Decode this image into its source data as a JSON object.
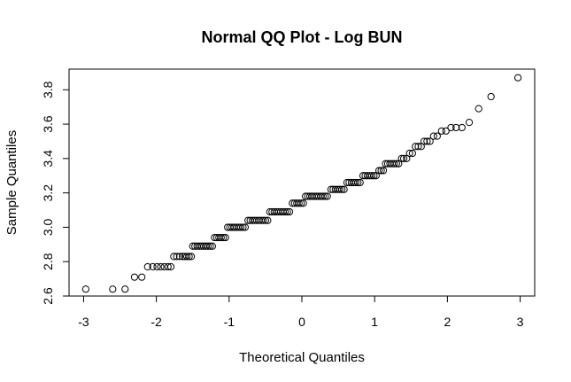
{
  "chart_data": {
    "type": "scatter",
    "title": "Normal QQ Plot - Log BUN",
    "xlabel": "Theoretical Quantiles",
    "ylabel": "Sample Quantiles",
    "xlim": [
      -3.2,
      3.2
    ],
    "ylim": [
      2.6,
      3.92
    ],
    "x_ticks": [
      -3,
      -2,
      -1,
      0,
      1,
      2,
      3
    ],
    "y_ticks": [
      2.6,
      2.8,
      3.0,
      3.2,
      3.4,
      3.6,
      3.8
    ],
    "grid": false,
    "series": [
      {
        "points": [
          [
            -2.97,
            2.64
          ],
          [
            -2.6,
            2.64
          ],
          [
            -2.43,
            2.64
          ],
          [
            -2.3,
            2.71
          ],
          [
            -2.2,
            2.71
          ],
          [
            -2.12,
            2.77
          ],
          [
            -2.05,
            2.77
          ],
          [
            -1.99,
            2.77
          ],
          [
            -1.94,
            2.77
          ],
          [
            -1.89,
            2.77
          ],
          [
            -1.84,
            2.77
          ],
          [
            -1.8,
            2.77
          ],
          [
            -1.76,
            2.83
          ],
          [
            -1.72,
            2.83
          ],
          [
            -1.68,
            2.83
          ],
          [
            -1.64,
            2.83
          ],
          [
            -1.61,
            2.83
          ],
          [
            -1.58,
            2.83
          ],
          [
            -1.55,
            2.83
          ],
          [
            -1.52,
            2.83
          ],
          [
            -1.5,
            2.89
          ],
          [
            -1.47,
            2.89
          ],
          [
            -1.44,
            2.89
          ],
          [
            -1.41,
            2.89
          ],
          [
            -1.38,
            2.89
          ],
          [
            -1.35,
            2.89
          ],
          [
            -1.32,
            2.89
          ],
          [
            -1.29,
            2.89
          ],
          [
            -1.26,
            2.89
          ],
          [
            -1.23,
            2.89
          ],
          [
            -1.2,
            2.94
          ],
          [
            -1.17,
            2.94
          ],
          [
            -1.14,
            2.94
          ],
          [
            -1.11,
            2.94
          ],
          [
            -1.08,
            2.94
          ],
          [
            -1.05,
            2.94
          ],
          [
            -1.02,
            3.0
          ],
          [
            -0.99,
            3.0
          ],
          [
            -0.96,
            3.0
          ],
          [
            -0.93,
            3.0
          ],
          [
            -0.9,
            3.0
          ],
          [
            -0.87,
            3.0
          ],
          [
            -0.84,
            3.0
          ],
          [
            -0.81,
            3.0
          ],
          [
            -0.78,
            3.0
          ],
          [
            -0.74,
            3.04
          ],
          [
            -0.71,
            3.04
          ],
          [
            -0.68,
            3.04
          ],
          [
            -0.65,
            3.04
          ],
          [
            -0.62,
            3.04
          ],
          [
            -0.59,
            3.04
          ],
          [
            -0.56,
            3.04
          ],
          [
            -0.53,
            3.04
          ],
          [
            -0.5,
            3.04
          ],
          [
            -0.47,
            3.04
          ],
          [
            -0.44,
            3.09
          ],
          [
            -0.41,
            3.09
          ],
          [
            -0.38,
            3.09
          ],
          [
            -0.35,
            3.09
          ],
          [
            -0.32,
            3.09
          ],
          [
            -0.29,
            3.09
          ],
          [
            -0.26,
            3.09
          ],
          [
            -0.23,
            3.09
          ],
          [
            -0.2,
            3.09
          ],
          [
            -0.17,
            3.09
          ],
          [
            -0.13,
            3.14
          ],
          [
            -0.1,
            3.14
          ],
          [
            -0.07,
            3.14
          ],
          [
            -0.04,
            3.14
          ],
          [
            -0.01,
            3.14
          ],
          [
            0.02,
            3.14
          ],
          [
            0.05,
            3.18
          ],
          [
            0.08,
            3.18
          ],
          [
            0.11,
            3.18
          ],
          [
            0.14,
            3.18
          ],
          [
            0.17,
            3.18
          ],
          [
            0.2,
            3.18
          ],
          [
            0.23,
            3.18
          ],
          [
            0.26,
            3.18
          ],
          [
            0.29,
            3.18
          ],
          [
            0.32,
            3.18
          ],
          [
            0.35,
            3.18
          ],
          [
            0.4,
            3.22
          ],
          [
            0.43,
            3.22
          ],
          [
            0.46,
            3.22
          ],
          [
            0.49,
            3.22
          ],
          [
            0.52,
            3.22
          ],
          [
            0.55,
            3.22
          ],
          [
            0.58,
            3.22
          ],
          [
            0.62,
            3.26
          ],
          [
            0.65,
            3.26
          ],
          [
            0.68,
            3.26
          ],
          [
            0.71,
            3.26
          ],
          [
            0.74,
            3.26
          ],
          [
            0.77,
            3.26
          ],
          [
            0.8,
            3.26
          ],
          [
            0.84,
            3.3
          ],
          [
            0.87,
            3.3
          ],
          [
            0.9,
            3.3
          ],
          [
            0.93,
            3.3
          ],
          [
            0.96,
            3.3
          ],
          [
            0.99,
            3.3
          ],
          [
            1.02,
            3.3
          ],
          [
            1.06,
            3.33
          ],
          [
            1.09,
            3.33
          ],
          [
            1.12,
            3.33
          ],
          [
            1.15,
            3.37
          ],
          [
            1.18,
            3.37
          ],
          [
            1.21,
            3.37
          ],
          [
            1.24,
            3.37
          ],
          [
            1.27,
            3.37
          ],
          [
            1.3,
            3.37
          ],
          [
            1.33,
            3.37
          ],
          [
            1.37,
            3.4
          ],
          [
            1.4,
            3.4
          ],
          [
            1.44,
            3.4
          ],
          [
            1.48,
            3.43
          ],
          [
            1.52,
            3.43
          ],
          [
            1.56,
            3.47
          ],
          [
            1.6,
            3.47
          ],
          [
            1.64,
            3.47
          ],
          [
            1.68,
            3.5
          ],
          [
            1.72,
            3.5
          ],
          [
            1.76,
            3.5
          ],
          [
            1.81,
            3.53
          ],
          [
            1.86,
            3.53
          ],
          [
            1.92,
            3.56
          ],
          [
            1.98,
            3.56
          ],
          [
            2.05,
            3.58
          ],
          [
            2.12,
            3.58
          ],
          [
            2.2,
            3.58
          ],
          [
            2.3,
            3.61
          ],
          [
            2.43,
            3.69
          ],
          [
            2.6,
            3.76
          ],
          [
            2.97,
            3.87
          ]
        ]
      }
    ]
  }
}
